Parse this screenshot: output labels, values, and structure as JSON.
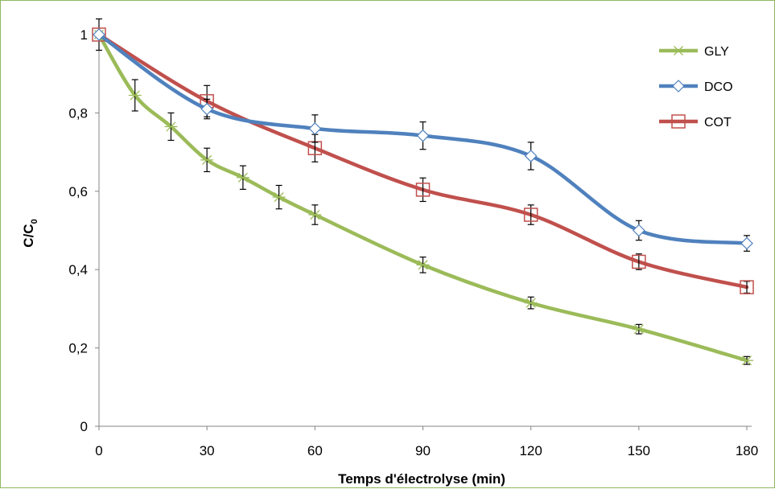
{
  "chart_data": {
    "type": "line",
    "xlabel": "Temps d'électrolyse (min)",
    "ylabel_main": "C/C",
    "ylabel_sub": "0",
    "xlim": [
      0,
      180
    ],
    "ylim": [
      0,
      1
    ],
    "xticks": [
      0,
      30,
      60,
      90,
      120,
      150,
      180
    ],
    "yticks": [
      "0",
      "0,2",
      "0,4",
      "0,6",
      "0,8",
      "1"
    ],
    "ytick_values": [
      0,
      0.2,
      0.4,
      0.6,
      0.8,
      1
    ],
    "grid": false,
    "legend_position": "top-right",
    "series": [
      {
        "name": "GLY",
        "color": "#9bbb59",
        "marker": "asterisk",
        "x": [
          0,
          10,
          20,
          30,
          40,
          50,
          60,
          90,
          120,
          150,
          180
        ],
        "y": [
          1.0,
          0.845,
          0.765,
          0.68,
          0.635,
          0.585,
          0.54,
          0.412,
          0.315,
          0.248,
          0.168
        ],
        "err": [
          0.04,
          0.04,
          0.035,
          0.03,
          0.03,
          0.03,
          0.025,
          0.02,
          0.015,
          0.012,
          0.01
        ]
      },
      {
        "name": "DCO",
        "color": "#4f81bd",
        "marker": "diamond",
        "x": [
          0,
          30,
          60,
          90,
          120,
          150,
          180
        ],
        "y": [
          1.0,
          0.81,
          0.76,
          0.742,
          0.69,
          0.5,
          0.467
        ],
        "err": [
          0.0,
          0.025,
          0.035,
          0.035,
          0.035,
          0.025,
          0.02
        ]
      },
      {
        "name": "COT",
        "color": "#c0504d",
        "marker": "square",
        "x": [
          0,
          30,
          60,
          90,
          120,
          150,
          180
        ],
        "y": [
          1.0,
          0.83,
          0.71,
          0.604,
          0.54,
          0.42,
          0.355
        ],
        "err": [
          0.0,
          0.04,
          0.035,
          0.03,
          0.025,
          0.02,
          0.015
        ]
      }
    ]
  }
}
